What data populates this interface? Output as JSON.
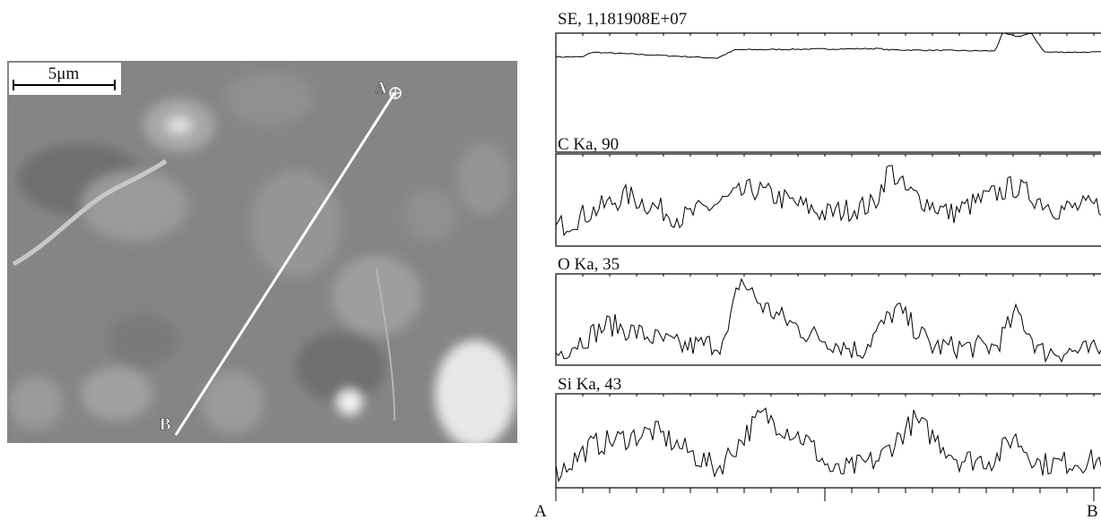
{
  "image": {
    "scale_bar": "5μm",
    "point_a": "A",
    "point_b": "B"
  },
  "profiles": [
    {
      "label": "SE, 1,181908E+07"
    },
    {
      "label": "C Ka, 90"
    },
    {
      "label": "O Ka, 35"
    },
    {
      "label": "Si Ka, 43"
    }
  ],
  "axis": {
    "start": "A",
    "end": "B"
  }
}
